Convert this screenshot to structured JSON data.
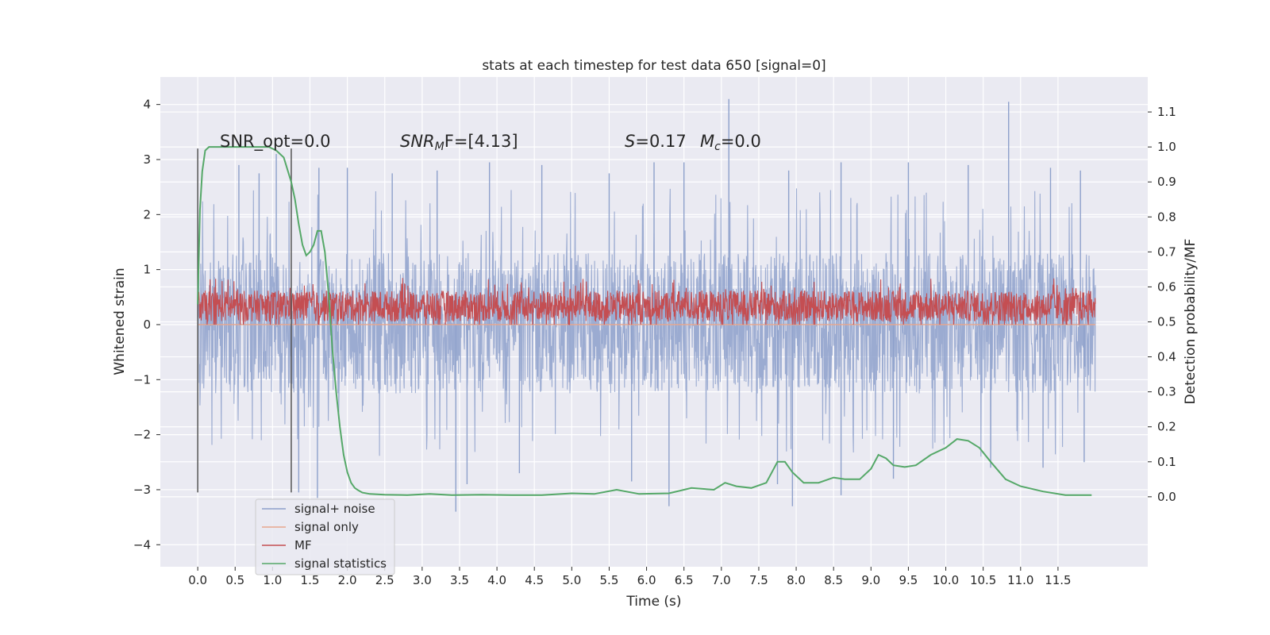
{
  "chart_data": {
    "type": "line",
    "title": "stats at each timestep for test data 650 [signal=0]",
    "xlabel": "Time (s)",
    "ylabel_left": "Whitened strain",
    "ylabel_right": "Detection probability/MF",
    "xlim": [
      -0.5,
      12.7
    ],
    "ylim_left": [
      -4.4,
      4.5
    ],
    "ylim_right": [
      -0.2,
      1.2
    ],
    "x_ticks": [
      0.0,
      0.5,
      1.0,
      1.5,
      2.0,
      2.5,
      3.0,
      3.5,
      4.0,
      4.5,
      5.0,
      5.5,
      6.0,
      6.5,
      7.0,
      7.5,
      8.0,
      8.5,
      9.0,
      9.5,
      10.0,
      10.5,
      11.0,
      11.5
    ],
    "x_tick_labels": [
      "0.0",
      "0.5",
      "1.0",
      "1.5",
      "2.0",
      "2.5",
      "3.0",
      "3.5",
      "4.0",
      "4.5",
      "5.0",
      "5.5",
      "6.0",
      "6.5",
      "7.0",
      "7.5",
      "8.0",
      "8.5",
      "9.0",
      "9.5",
      "10.0",
      "10.5",
      "11.0",
      "11.5"
    ],
    "y_left_ticks": [
      -4,
      -3,
      -2,
      -1,
      0,
      1,
      2,
      3,
      4
    ],
    "y_left_tick_labels": [
      "−4",
      "−3",
      "−2",
      "−1",
      "0",
      "1",
      "2",
      "3",
      "4"
    ],
    "y_right_ticks": [
      0.0,
      0.1,
      0.2,
      0.3,
      0.4,
      0.5,
      0.6,
      0.7,
      0.8,
      0.9,
      1.0,
      1.1
    ],
    "y_right_tick_labels": [
      "0.0",
      "0.1",
      "0.2",
      "0.3",
      "0.4",
      "0.5",
      "0.6",
      "0.7",
      "0.8",
      "0.9",
      "1.0",
      "1.1"
    ],
    "grid": true,
    "legend_position": "lower-left",
    "annotations": {
      "snr_opt": "SNR_opt=0.0",
      "snr_mf_sym": "SNR",
      "snr_mf_sub": "M",
      "snr_mf_rest": "F=[4.13]",
      "s_sym": "S",
      "s_rest": "=0.17",
      "mc_sym": "M",
      "mc_sub": "c",
      "mc_rest": "=0.0"
    },
    "markers": [
      {
        "x": 0.0,
        "y_range": [
          -3.05,
          3.2
        ]
      },
      {
        "x": 1.25,
        "y_range": [
          -3.05,
          3.2
        ]
      }
    ],
    "series": [
      {
        "name": "signal+ noise",
        "axis": "left",
        "color": "#8da0cb",
        "style": "noise",
        "x_range": [
          0.0,
          12.0
        ],
        "band": [
          -1.25,
          1.3
        ],
        "envelope": [
          -2.4,
          2.5
        ],
        "spikes": [
          {
            "x": 0.55,
            "y": 2.9
          },
          {
            "x": 0.82,
            "y": 2.75
          },
          {
            "x": 1.05,
            "y": 3.1
          },
          {
            "x": 1.62,
            "y": 2.85
          },
          {
            "x": 2.0,
            "y": 2.85
          },
          {
            "x": 2.6,
            "y": 2.75
          },
          {
            "x": 3.2,
            "y": 2.8
          },
          {
            "x": 3.9,
            "y": 2.95
          },
          {
            "x": 4.6,
            "y": 2.9
          },
          {
            "x": 5.5,
            "y": 2.75
          },
          {
            "x": 6.1,
            "y": 2.95
          },
          {
            "x": 6.5,
            "y": 2.95
          },
          {
            "x": 7.1,
            "y": 4.1
          },
          {
            "x": 7.9,
            "y": 2.8
          },
          {
            "x": 8.6,
            "y": 2.95
          },
          {
            "x": 9.5,
            "y": 2.95
          },
          {
            "x": 10.3,
            "y": 2.9
          },
          {
            "x": 10.84,
            "y": 4.05
          },
          {
            "x": 11.4,
            "y": 2.85
          },
          {
            "x": 11.8,
            "y": 2.8
          },
          {
            "x": 1.35,
            "y": -3.05
          },
          {
            "x": 1.6,
            "y": -3.15
          },
          {
            "x": 3.45,
            "y": -3.4
          },
          {
            "x": 3.6,
            "y": -2.9
          },
          {
            "x": 4.3,
            "y": -2.7
          },
          {
            "x": 5.8,
            "y": -2.85
          },
          {
            "x": 6.3,
            "y": -3.3
          },
          {
            "x": 7.75,
            "y": -2.9
          },
          {
            "x": 7.95,
            "y": -3.3
          },
          {
            "x": 8.6,
            "y": -3.1
          },
          {
            "x": 9.3,
            "y": -2.8
          },
          {
            "x": 10.6,
            "y": -2.6
          },
          {
            "x": 11.3,
            "y": -2.6
          },
          {
            "x": 11.85,
            "y": -2.5
          }
        ]
      },
      {
        "name": "signal only",
        "axis": "left",
        "color": "#e8a68c",
        "x": [
          0.0,
          12.0
        ],
        "y": [
          0.0,
          0.0
        ]
      },
      {
        "name": "MF",
        "axis": "left",
        "color": "#c44e52",
        "style": "noise",
        "x_range": [
          0.0,
          12.0
        ],
        "band": [
          0.05,
          0.62
        ],
        "envelope": [
          0.0,
          0.85
        ]
      },
      {
        "name": "signal statistics",
        "axis": "right",
        "color": "#55a868",
        "x": [
          0.0,
          0.03,
          0.06,
          0.1,
          0.15,
          0.2,
          0.3,
          0.5,
          0.8,
          0.95,
          1.05,
          1.15,
          1.25,
          1.3,
          1.35,
          1.4,
          1.45,
          1.5,
          1.55,
          1.6,
          1.65,
          1.7,
          1.75,
          1.8,
          1.85,
          1.9,
          1.95,
          2.0,
          2.05,
          2.1,
          2.15,
          2.2,
          2.3,
          2.5,
          2.8,
          3.1,
          3.4,
          3.8,
          4.2,
          4.6,
          5.0,
          5.3,
          5.6,
          5.9,
          6.3,
          6.6,
          6.9,
          7.05,
          7.2,
          7.4,
          7.6,
          7.75,
          7.85,
          7.95,
          8.1,
          8.3,
          8.5,
          8.65,
          8.85,
          9.0,
          9.1,
          9.2,
          9.3,
          9.45,
          9.6,
          9.8,
          10.0,
          10.15,
          10.3,
          10.45,
          10.6,
          10.8,
          11.0,
          11.3,
          11.6,
          11.95
        ],
        "y": [
          0.55,
          0.82,
          0.93,
          0.99,
          1.0,
          1.0,
          1.0,
          1.0,
          1.0,
          1.0,
          0.99,
          0.97,
          0.9,
          0.85,
          0.78,
          0.72,
          0.69,
          0.7,
          0.72,
          0.76,
          0.76,
          0.7,
          0.58,
          0.42,
          0.3,
          0.2,
          0.12,
          0.07,
          0.04,
          0.025,
          0.018,
          0.012,
          0.008,
          0.006,
          0.005,
          0.008,
          0.005,
          0.006,
          0.005,
          0.005,
          0.01,
          0.008,
          0.02,
          0.008,
          0.01,
          0.025,
          0.02,
          0.04,
          0.03,
          0.025,
          0.04,
          0.1,
          0.1,
          0.07,
          0.04,
          0.04,
          0.055,
          0.05,
          0.05,
          0.08,
          0.12,
          0.11,
          0.09,
          0.085,
          0.09,
          0.12,
          0.14,
          0.165,
          0.16,
          0.14,
          0.1,
          0.05,
          0.03,
          0.015,
          0.005,
          0.005
        ]
      }
    ]
  }
}
